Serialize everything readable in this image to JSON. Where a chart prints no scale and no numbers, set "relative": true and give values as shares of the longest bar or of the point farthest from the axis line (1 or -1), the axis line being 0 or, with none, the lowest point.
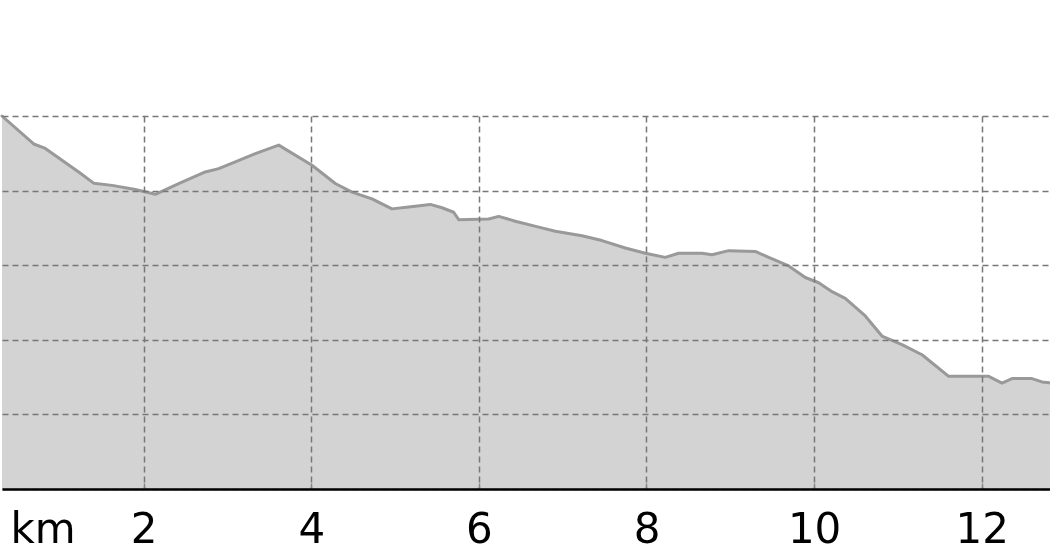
{
  "chart_data": {
    "type": "area",
    "xlabel": "km",
    "x": [
      0.309,
      0.687,
      0.826,
      1.224,
      1.403,
      1.622,
      1.9,
      2.138,
      2.457,
      2.735,
      2.895,
      3.093,
      3.332,
      3.611,
      4.008,
      4.286,
      4.486,
      4.724,
      4.963,
      5.162,
      5.42,
      5.56,
      5.699,
      5.759,
      6.117,
      6.236,
      6.434,
      6.714,
      6.912,
      7.23,
      7.469,
      7.747,
      7.986,
      8.224,
      8.384,
      8.662,
      8.782,
      8.981,
      9.298,
      9.458,
      9.697,
      9.895,
      10.055,
      10.214,
      10.372,
      10.611,
      10.81,
      11.049,
      11.288,
      11.606,
      12.084,
      12.242,
      12.362,
      12.6,
      12.72,
      12.839
    ],
    "values": [
      1,
      0.925,
      0.913,
      0.85,
      0.82,
      0.814,
      0.803,
      0.79,
      0.823,
      0.85,
      0.859,
      0.877,
      0.899,
      0.922,
      0.868,
      0.819,
      0.796,
      0.778,
      0.751,
      0.756,
      0.763,
      0.754,
      0.742,
      0.722,
      0.724,
      0.731,
      0.718,
      0.702,
      0.691,
      0.679,
      0.666,
      0.646,
      0.632,
      0.621,
      0.632,
      0.632,
      0.628,
      0.639,
      0.637,
      0.621,
      0.598,
      0.567,
      0.553,
      0.529,
      0.511,
      0.464,
      0.41,
      0.387,
      0.36,
      0.302,
      0.302,
      0.284,
      0.296,
      0.296,
      0.287,
      0.284
    ],
    "color": "#d3d3d3",
    "relative": true,
    "xlim": [
      0.309,
      12.839
    ],
    "xticks": [
      2,
      4,
      6,
      8,
      10,
      12
    ],
    "grid": true,
    "tick_labels": "x"
  }
}
